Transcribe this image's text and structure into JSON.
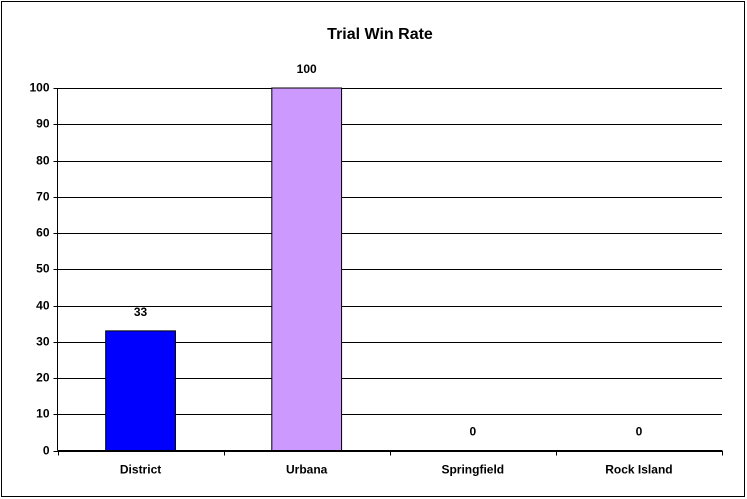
{
  "chart_data": {
    "type": "bar",
    "title": "Trial Win Rate",
    "categories": [
      "District",
      "Urbana",
      "Springfield",
      "Rock Island"
    ],
    "values": [
      33,
      100,
      0,
      0
    ],
    "colors": [
      "#0000ff",
      "#cc99ff",
      "#ffff99",
      "#99ccff"
    ],
    "ylim": [
      0,
      100
    ],
    "yticks": [
      0,
      10,
      20,
      30,
      40,
      50,
      60,
      70,
      80,
      90,
      100
    ],
    "grid": true
  }
}
